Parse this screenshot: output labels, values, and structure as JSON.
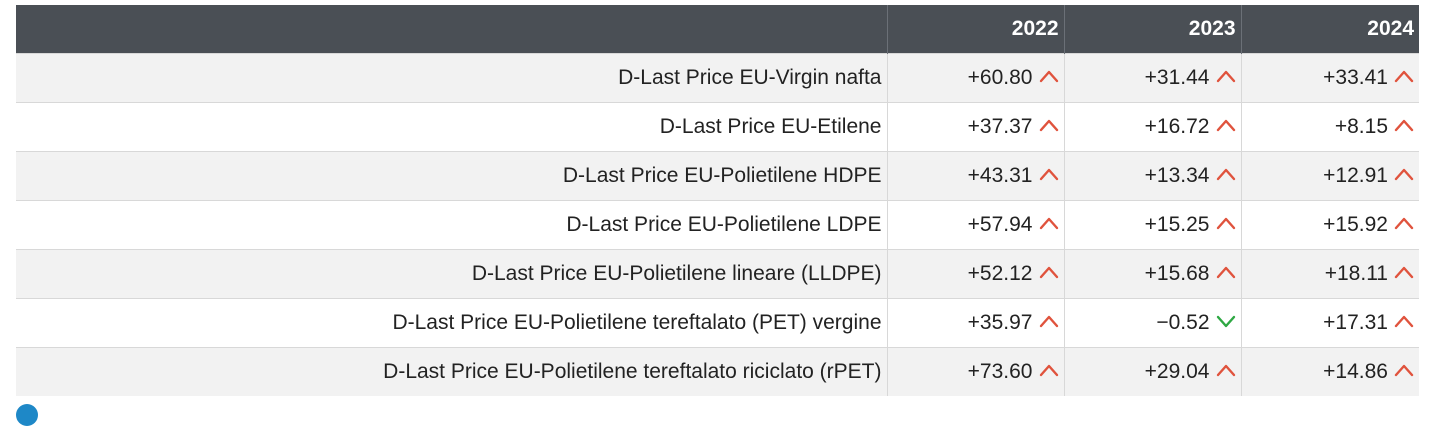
{
  "colors": {
    "header_bg": "#4a4f55",
    "up": "#e0533d",
    "down": "#2ea843",
    "info_dot": "#1e88c7"
  },
  "chart_data": {
    "type": "table",
    "columns": [
      "",
      "2022",
      "2023",
      "2024"
    ],
    "rows": [
      {
        "label": "D-Last Price EU-Virgin nafta",
        "values": [
          "+60.80",
          "+31.44",
          "+33.41"
        ],
        "trend": [
          "up",
          "up",
          "up"
        ]
      },
      {
        "label": "D-Last Price EU-Etilene",
        "values": [
          "+37.37",
          "+16.72",
          "+8.15"
        ],
        "trend": [
          "up",
          "up",
          "up"
        ]
      },
      {
        "label": "D-Last Price EU-Polietilene HDPE",
        "values": [
          "+43.31",
          "+13.34",
          "+12.91"
        ],
        "trend": [
          "up",
          "up",
          "up"
        ]
      },
      {
        "label": "D-Last Price EU-Polietilene LDPE",
        "values": [
          "+57.94",
          "+15.25",
          "+15.92"
        ],
        "trend": [
          "up",
          "up",
          "up"
        ]
      },
      {
        "label": "D-Last Price EU-Polietilene lineare (LLDPE)",
        "values": [
          "+52.12",
          "+15.68",
          "+18.11"
        ],
        "trend": [
          "up",
          "up",
          "up"
        ]
      },
      {
        "label": "D-Last Price EU-Polietilene tereftalato (PET) vergine",
        "values": [
          "+35.97",
          "−0.52",
          "+17.31"
        ],
        "trend": [
          "up",
          "down",
          "up"
        ]
      },
      {
        "label": "D-Last Price EU-Polietilene tereftalato riciclato (rPET)",
        "values": [
          "+73.60",
          "+29.04",
          "+14.86"
        ],
        "trend": [
          "up",
          "up",
          "up"
        ]
      }
    ]
  },
  "footnote": {
    "icon": "info-dot-icon"
  }
}
